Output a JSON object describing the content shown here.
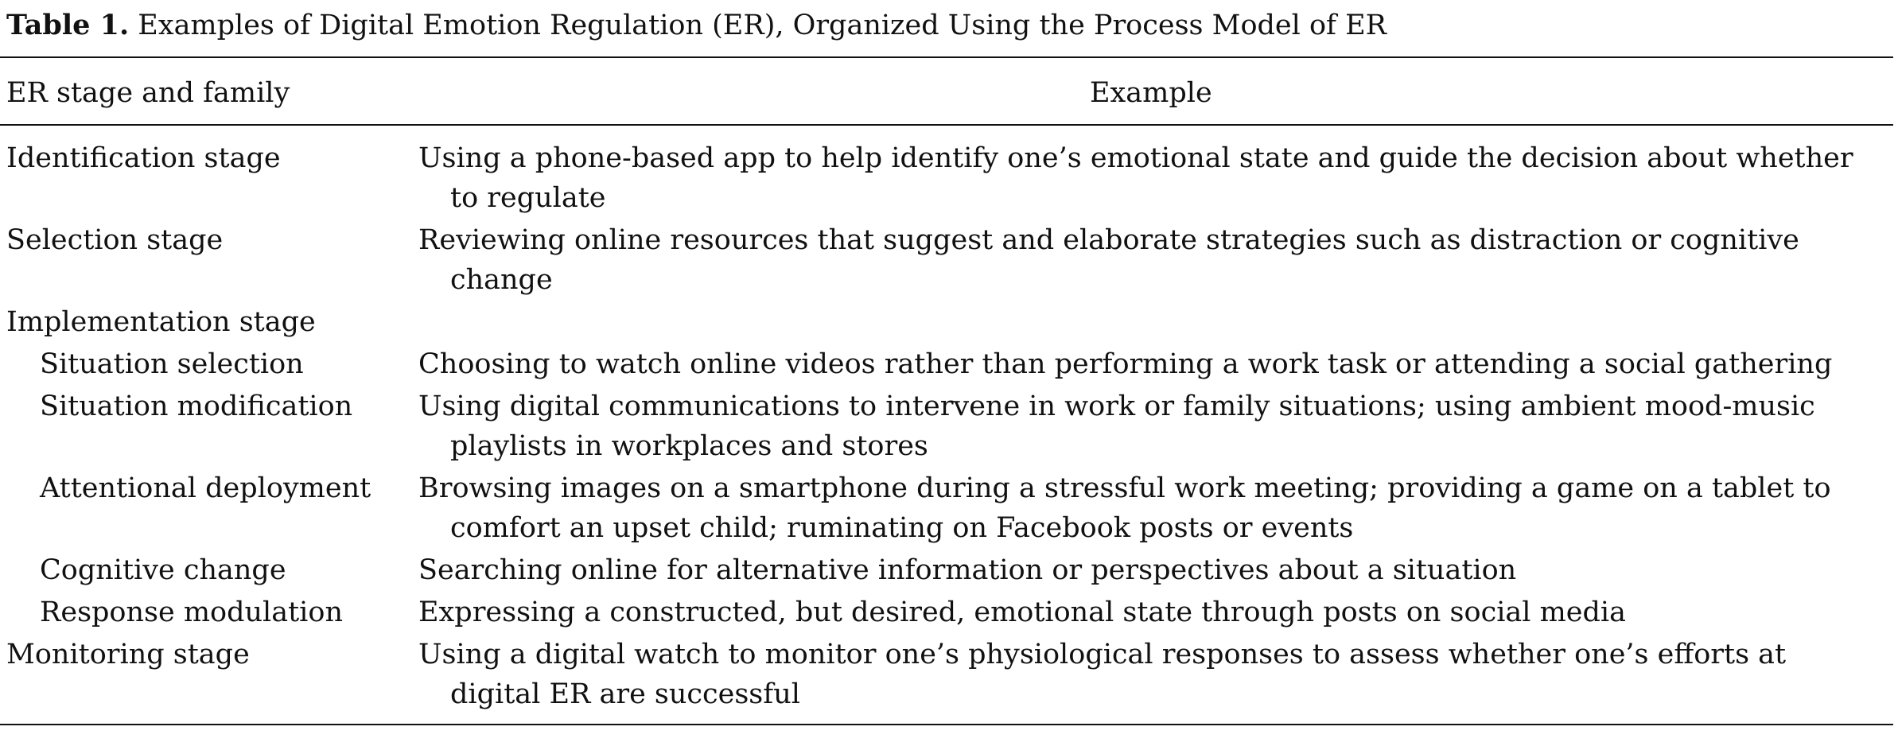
{
  "caption": {
    "label": "Table 1.",
    "text": "Examples of Digital Emotion Regulation (ER), Organized Using the Process Model of ER"
  },
  "columns": [
    "ER stage and family",
    "Example"
  ],
  "rows": [
    {
      "stage": "Identification stage",
      "sub": false,
      "example": "Using a phone-based app to help identify one’s emotional state and guide the decision about whether to regulate"
    },
    {
      "stage": "Selection stage",
      "sub": false,
      "example": "Reviewing online resources that suggest and elaborate strategies such as distraction or cognitive change"
    },
    {
      "stage": "Implementation stage",
      "sub": false,
      "example": ""
    },
    {
      "stage": "Situation selection",
      "sub": true,
      "example": "Choosing to watch online videos rather than performing a work task or attending a social gathering"
    },
    {
      "stage": "Situation modification",
      "sub": true,
      "example": "Using digital communications to intervene in work or family situations; using ambient mood-music playlists in workplaces and stores"
    },
    {
      "stage": "Attentional deployment",
      "sub": true,
      "example": "Browsing images on a smartphone during a stressful work meeting; providing a game on a tablet to comfort an upset child; ruminating on Facebook posts or events"
    },
    {
      "stage": "Cognitive change",
      "sub": true,
      "example": "Searching online for alternative information or perspectives about a situation"
    },
    {
      "stage": "Response modulation",
      "sub": true,
      "example": "Expressing a constructed, but desired, emotional state through posts on social media"
    },
    {
      "stage": "Monitoring stage",
      "sub": false,
      "example": "Using a digital watch to monitor one’s physiological responses to assess whether one’s efforts at digital ER are successful"
    }
  ]
}
